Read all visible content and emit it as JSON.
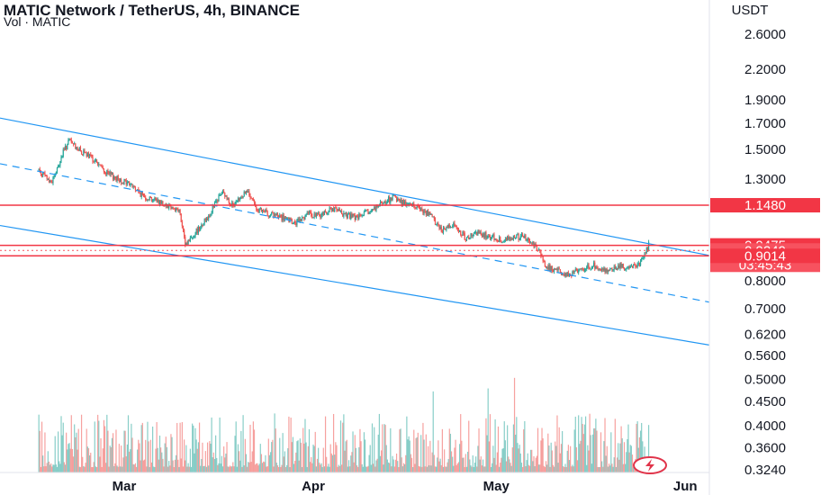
{
  "header": {
    "title": "MATIC Network / TetherUS, 4h, BINANCE",
    "volume_label": "Vol · MATIC"
  },
  "chart_data": {
    "type": "candlestick",
    "symbol": "MATIC/USDT",
    "timeframe": "4h",
    "exchange": "BINANCE",
    "y_axis_unit": "USDT",
    "y_scale": "log",
    "ylim": [
      0.31,
      3.0
    ],
    "y_ticks": [
      "2.6000",
      "2.2000",
      "1.9000",
      "1.7000",
      "1.5000",
      "1.3000",
      "0.8000",
      "0.7000",
      "0.6200",
      "0.5600",
      "0.5000",
      "0.4500",
      "0.4000",
      "0.3600",
      "0.3240"
    ],
    "x_ticks": [
      "Mar",
      "Apr",
      "May",
      "Jun"
    ],
    "price_path": [
      [
        "2022-02-15",
        1.36
      ],
      [
        "2022-02-17",
        1.28
      ],
      [
        "2022-02-18",
        1.36
      ],
      [
        "2022-02-19",
        1.48
      ],
      [
        "2022-02-20",
        1.56
      ],
      [
        "2022-02-22",
        1.48
      ],
      [
        "2022-02-24",
        1.43
      ],
      [
        "2022-02-26",
        1.34
      ],
      [
        "2022-02-28",
        1.3
      ],
      [
        "2022-03-02",
        1.27
      ],
      [
        "2022-03-04",
        1.2
      ],
      [
        "2022-03-06",
        1.18
      ],
      [
        "2022-03-08",
        1.15
      ],
      [
        "2022-03-10",
        1.12
      ],
      [
        "2022-03-11",
        0.95
      ],
      [
        "2022-03-13",
        1.02
      ],
      [
        "2022-03-15",
        1.1
      ],
      [
        "2022-03-17",
        1.22
      ],
      [
        "2022-03-19",
        1.14
      ],
      [
        "2022-03-21",
        1.23
      ],
      [
        "2022-03-23",
        1.12
      ],
      [
        "2022-03-25",
        1.1
      ],
      [
        "2022-03-27",
        1.08
      ],
      [
        "2022-03-29",
        1.05
      ],
      [
        "2022-03-31",
        1.1
      ],
      [
        "2022-04-02",
        1.09
      ],
      [
        "2022-04-04",
        1.13
      ],
      [
        "2022-04-06",
        1.1
      ],
      [
        "2022-04-08",
        1.08
      ],
      [
        "2022-04-10",
        1.11
      ],
      [
        "2022-04-12",
        1.15
      ],
      [
        "2022-04-14",
        1.19
      ],
      [
        "2022-04-16",
        1.16
      ],
      [
        "2022-04-18",
        1.14
      ],
      [
        "2022-04-20",
        1.1
      ],
      [
        "2022-04-22",
        1.02
      ],
      [
        "2022-04-24",
        1.05
      ],
      [
        "2022-04-26",
        0.98
      ],
      [
        "2022-04-28",
        1.0
      ],
      [
        "2022-04-30",
        0.99
      ],
      [
        "2022-05-02",
        0.97
      ],
      [
        "2022-05-04",
        0.99
      ],
      [
        "2022-05-06",
        0.98
      ],
      [
        "2022-05-08",
        0.93
      ],
      [
        "2022-05-09",
        0.86
      ],
      [
        "2022-05-11",
        0.84
      ],
      [
        "2022-05-13",
        0.82
      ],
      [
        "2022-05-15",
        0.85
      ],
      [
        "2022-05-17",
        0.86
      ],
      [
        "2022-05-19",
        0.84
      ],
      [
        "2022-05-21",
        0.86
      ],
      [
        "2022-05-23",
        0.85
      ],
      [
        "2022-05-25",
        0.88
      ],
      [
        "2022-05-26",
        0.95
      ]
    ],
    "horizontal_lines": [
      1.148,
      0.9475,
      0.9014
    ],
    "price_labels": [
      {
        "value": "1.1480",
        "color": "#f23645"
      },
      {
        "value": "0.9475",
        "color": "#f23645"
      },
      {
        "value": "0.9249",
        "color": "#f7525f"
      },
      {
        "value": "03:45:43",
        "color": "#f7525f"
      },
      {
        "value": "0.9014",
        "color": "#f23645"
      }
    ],
    "channel": {
      "upper": [
        [
          "2022-02-15",
          1.68
        ],
        [
          "2022-05-27",
          0.95
        ]
      ],
      "middle": [
        [
          "2022-02-15",
          1.35
        ],
        [
          "2022-05-27",
          0.76
        ]
      ],
      "lower": [
        [
          "2022-02-15",
          1.01
        ],
        [
          "2022-05-27",
          0.615
        ]
      ]
    },
    "colors": {
      "up": "#26a69a",
      "down": "#ef5350",
      "level_line": "#f23645",
      "channel_line": "#2196f3",
      "current_price": "#f7525f"
    }
  }
}
